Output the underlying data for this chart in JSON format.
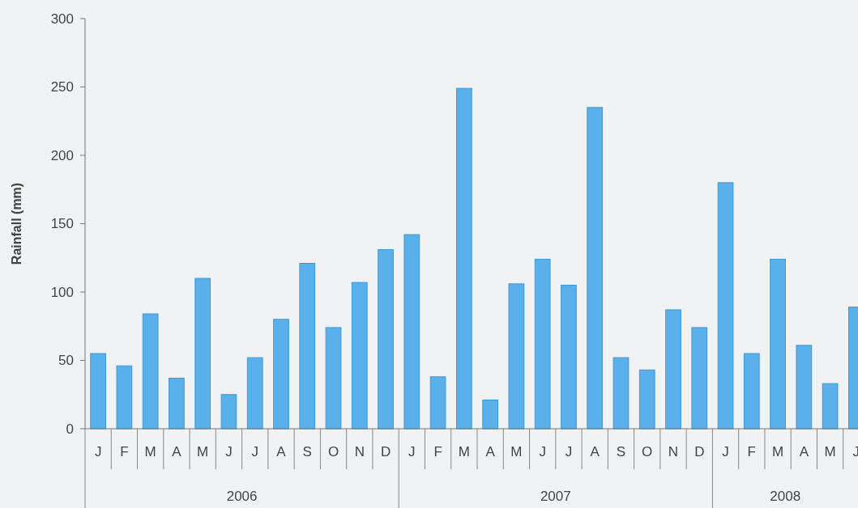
{
  "chart_data": {
    "type": "bar",
    "ylabel": "Rainfall (mm)",
    "categories": [
      "J",
      "F",
      "M",
      "A",
      "M",
      "J",
      "J",
      "A",
      "S",
      "O",
      "N",
      "D",
      "J",
      "F",
      "M",
      "A",
      "M",
      "J",
      "J",
      "A",
      "S",
      "O",
      "N",
      "D",
      "J",
      "F",
      "M",
      "A",
      "M",
      "J"
    ],
    "values": [
      55,
      46,
      84,
      37,
      110,
      25,
      52,
      80,
      121,
      74,
      107,
      131,
      142,
      38,
      249,
      21,
      106,
      124,
      105,
      235,
      52,
      43,
      87,
      74,
      180,
      55,
      124,
      61,
      33,
      89
    ],
    "color": "#5ab0ea",
    "ylim": [
      0,
      300
    ],
    "yticks": [
      0,
      50,
      100,
      150,
      200,
      250,
      300
    ],
    "annotations": [
      "2006",
      "2007",
      "2008"
    ]
  }
}
